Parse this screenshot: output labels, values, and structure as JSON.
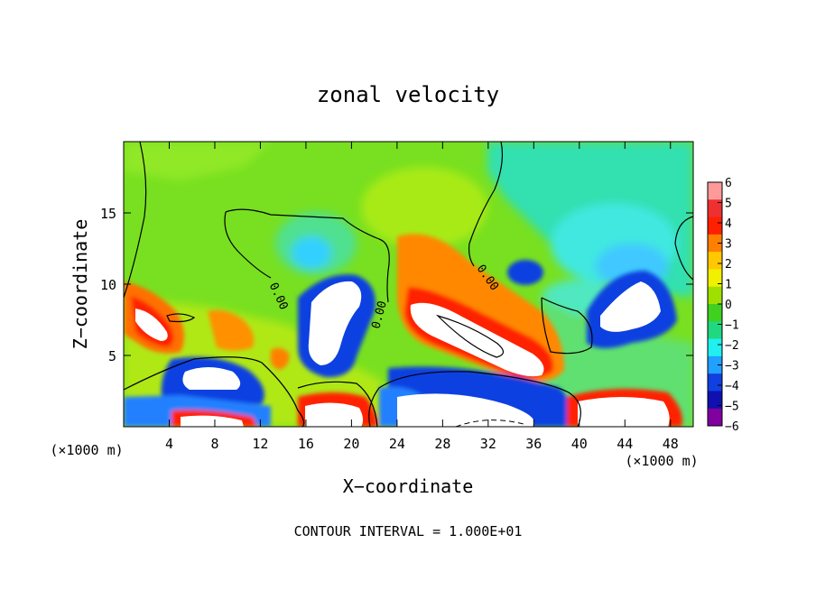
{
  "chart_data": {
    "type": "heatmap",
    "title": "zonal velocity",
    "xlabel": "X−coordinate",
    "ylabel": "Z−coordinate",
    "x_unit_label": "(×1000 m)",
    "z_unit_label": "(×1000 m)",
    "footer": "CONTOUR INTERVAL = 1.000E+01",
    "xlim": [
      0,
      50
    ],
    "ylim": [
      0,
      20
    ],
    "x_ticks": [
      4,
      8,
      12,
      16,
      20,
      24,
      28,
      32,
      36,
      40,
      44,
      48
    ],
    "y_ticks": [
      5,
      10,
      15
    ],
    "colorbar": {
      "ticks": [
        6,
        5,
        4,
        3,
        2,
        1,
        0,
        -1,
        -2,
        -3,
        -4,
        -5,
        -6
      ],
      "colors": [
        "#ff9a9a",
        "#f03030",
        "#ff2000",
        "#ff8000",
        "#ffc800",
        "#f0f000",
        "#a0e000",
        "#40d020",
        "#20d880",
        "#20f0f0",
        "#20a0ff",
        "#1040e0",
        "#1010b0",
        "#8000a0"
      ],
      "outside_range_color": "#ffffff"
    },
    "contour_labels": [
      "0.00",
      "0.00",
      "0.00"
    ]
  }
}
